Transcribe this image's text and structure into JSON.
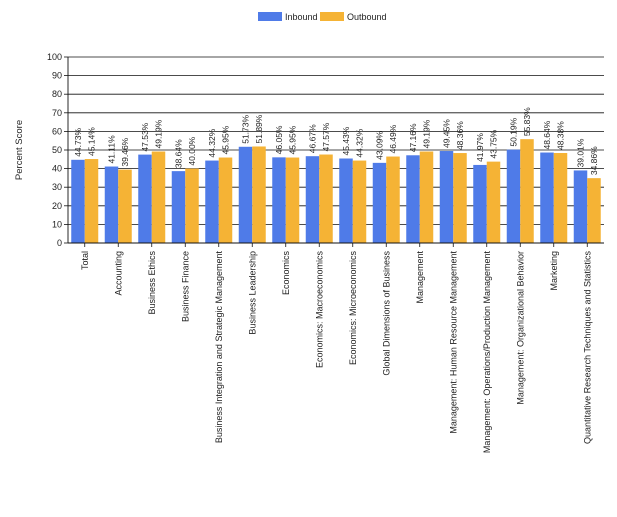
{
  "chart_data": {
    "type": "bar",
    "ylabel": "Percent Score",
    "xlabel": "",
    "ylim": [
      0,
      100
    ],
    "yticks": [
      0,
      10,
      20,
      30,
      40,
      50,
      60,
      70,
      80,
      90,
      100
    ],
    "grid": true,
    "legend_position": "top-center",
    "categories": [
      "Total",
      "Accounting",
      "Business Ethics",
      "Business Finance",
      "Business Integration and Strategic Management",
      "Business Leadership",
      "Economics",
      "Economics: Macroeconomics",
      "Economics: Microeconomics",
      "Global Dimensions of Business",
      "Management",
      "Management: Human Resource Management",
      "Management: Operations/Production Management",
      "Management: Organizational Behavior",
      "Marketing",
      "Quantitative Research Techniques and Statistics"
    ],
    "series": [
      {
        "name": "Inbound",
        "color": "#4f7be8",
        "values": [
          44.73,
          41.11,
          47.53,
          38.64,
          44.32,
          51.73,
          46.05,
          46.67,
          45.43,
          43.09,
          47.16,
          49.45,
          41.97,
          50.19,
          48.64,
          39.01
        ],
        "labels": [
          "44.73%",
          "41.11%",
          "47.53%",
          "38.64%",
          "44.32%",
          "51.73%",
          "46.05%",
          "46.67%",
          "45.43%",
          "43.09%",
          "47.16%",
          "49.45%",
          "41.97%",
          "50.19%",
          "48.64%",
          "39.01%"
        ]
      },
      {
        "name": "Outbound",
        "color": "#f5b335",
        "values": [
          45.14,
          39.46,
          49.19,
          40.0,
          45.95,
          51.89,
          45.95,
          47.57,
          44.32,
          46.49,
          49.19,
          48.36,
          43.75,
          55.83,
          48.38,
          34.86
        ],
        "labels": [
          "45.14%",
          "39.46%",
          "49.19%",
          "40.00%",
          "45.95%",
          "51.89%",
          "45.95%",
          "47.57%",
          "44.32%",
          "46.49%",
          "49.19%",
          "48.36%",
          "43.75%",
          "55.83%",
          "48.38%",
          "34.86%"
        ]
      }
    ]
  }
}
